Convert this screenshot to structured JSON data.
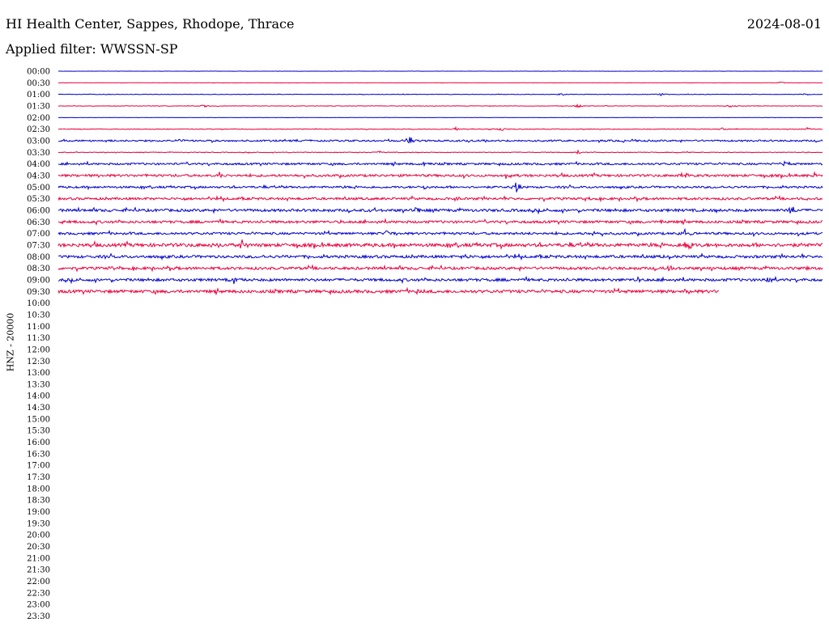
{
  "header": {
    "station": "HI Health Center, Sappes, Rhodope, Thrace",
    "date": "2024-08-01",
    "filter": "Applied filter: WWSSN-SP"
  },
  "chart_data": {
    "type": "line",
    "title": "HI Health Center, Sappes, Rhodope, Thrace",
    "ylabel": "HNZ - 20000",
    "xlabel": "",
    "row_labels": [
      "00:00",
      "00:30",
      "01:00",
      "01:30",
      "02:00",
      "02:30",
      "03:00",
      "03:30",
      "04:00",
      "04:30",
      "05:00",
      "05:30",
      "06:00",
      "06:30",
      "07:00",
      "07:30",
      "08:00",
      "08:30",
      "09:00",
      "09:30",
      "10:00",
      "10:30",
      "11:00",
      "11:30",
      "12:00",
      "12:30",
      "13:00",
      "13:30",
      "14:00",
      "14:30",
      "15:00",
      "15:30",
      "16:00",
      "16:30",
      "17:00",
      "17:30",
      "18:00",
      "18:30",
      "19:00",
      "19:30",
      "20:00",
      "20:30",
      "21:00",
      "21:30",
      "22:00",
      "22:30",
      "23:00",
      "23:30"
    ],
    "row_colors": [
      "#0000cc",
      "#e8003c"
    ],
    "traces": [
      {
        "row": "00:00",
        "fraction": 1.0,
        "noise": 0.15,
        "events": []
      },
      {
        "row": "00:30",
        "fraction": 1.0,
        "noise": 0.15,
        "events": [
          [
            0.945,
            1.5
          ]
        ]
      },
      {
        "row": "01:00",
        "fraction": 1.0,
        "noise": 0.3,
        "events": [
          [
            0.66,
            1.8
          ],
          [
            0.79,
            2.2
          ],
          [
            0.98,
            2.0
          ]
        ]
      },
      {
        "row": "01:30",
        "fraction": 1.0,
        "noise": 0.3,
        "events": [
          [
            0.19,
            2.0
          ],
          [
            0.68,
            2.5
          ],
          [
            0.88,
            2.0
          ]
        ]
      },
      {
        "row": "02:00",
        "fraction": 1.0,
        "noise": 0.15,
        "events": []
      },
      {
        "row": "02:30",
        "fraction": 1.0,
        "noise": 0.4,
        "events": [
          [
            0.52,
            2.5
          ],
          [
            0.58,
            3.0
          ],
          [
            0.87,
            2.0
          ],
          [
            0.98,
            2.0
          ]
        ]
      },
      {
        "row": "03:00",
        "fraction": 1.0,
        "noise": 1.0,
        "events": [
          [
            0.46,
            11.0
          ],
          [
            0.16,
            2.5
          ],
          [
            0.75,
            2.5
          ]
        ]
      },
      {
        "row": "03:30",
        "fraction": 1.0,
        "noise": 0.4,
        "events": [
          [
            0.42,
            2.0
          ],
          [
            0.68,
            2.5
          ],
          [
            0.81,
            2.0
          ]
        ]
      },
      {
        "row": "04:00",
        "fraction": 1.0,
        "noise": 1.2,
        "events": [
          [
            0.95,
            5.0
          ],
          [
            0.48,
            2.5
          ]
        ]
      },
      {
        "row": "04:30",
        "fraction": 1.0,
        "noise": 1.4,
        "events": [
          [
            0.21,
            5.0
          ],
          [
            0.59,
            3.0
          ],
          [
            0.82,
            3.0
          ],
          [
            0.99,
            4.0
          ]
        ]
      },
      {
        "row": "05:00",
        "fraction": 1.0,
        "noise": 1.2,
        "events": [
          [
            0.6,
            7.0
          ],
          [
            0.48,
            3.0
          ]
        ]
      },
      {
        "row": "05:30",
        "fraction": 1.0,
        "noise": 1.4,
        "events": [
          [
            0.52,
            4.0
          ],
          [
            0.69,
            3.0
          ],
          [
            0.98,
            3.0
          ]
        ]
      },
      {
        "row": "06:00",
        "fraction": 1.0,
        "noise": 1.6,
        "events": [
          [
            0.96,
            9.0
          ],
          [
            0.47,
            4.0
          ]
        ]
      },
      {
        "row": "06:30",
        "fraction": 1.0,
        "noise": 1.5,
        "events": [
          [
            0.01,
            3.0
          ],
          [
            0.79,
            3.0
          ]
        ]
      },
      {
        "row": "07:00",
        "fraction": 1.0,
        "noise": 1.4,
        "events": [
          [
            0.43,
            4.0
          ],
          [
            0.82,
            5.0
          ],
          [
            0.7,
            3.0
          ]
        ]
      },
      {
        "row": "07:30",
        "fraction": 1.0,
        "noise": 2.0,
        "events": [
          [
            0.825,
            10.0
          ],
          [
            0.24,
            6.0
          ],
          [
            0.98,
            4.0
          ]
        ]
      },
      {
        "row": "08:00",
        "fraction": 1.0,
        "noise": 1.6,
        "events": [
          [
            0.53,
            4.0
          ],
          [
            0.8,
            3.0
          ]
        ]
      },
      {
        "row": "08:30",
        "fraction": 1.0,
        "noise": 1.6,
        "events": [
          [
            0.07,
            3.5
          ],
          [
            0.8,
            3.5
          ],
          [
            0.98,
            3.0
          ]
        ]
      },
      {
        "row": "09:00",
        "fraction": 1.0,
        "noise": 1.6,
        "events": [
          [
            0.23,
            4.0
          ],
          [
            0.76,
            4.0
          ],
          [
            0.93,
            3.0
          ]
        ]
      },
      {
        "row": "09:30",
        "fraction": 0.865,
        "noise": 1.8,
        "events": [
          [
            0.47,
            4.0
          ],
          [
            0.82,
            3.5
          ]
        ]
      }
    ]
  }
}
